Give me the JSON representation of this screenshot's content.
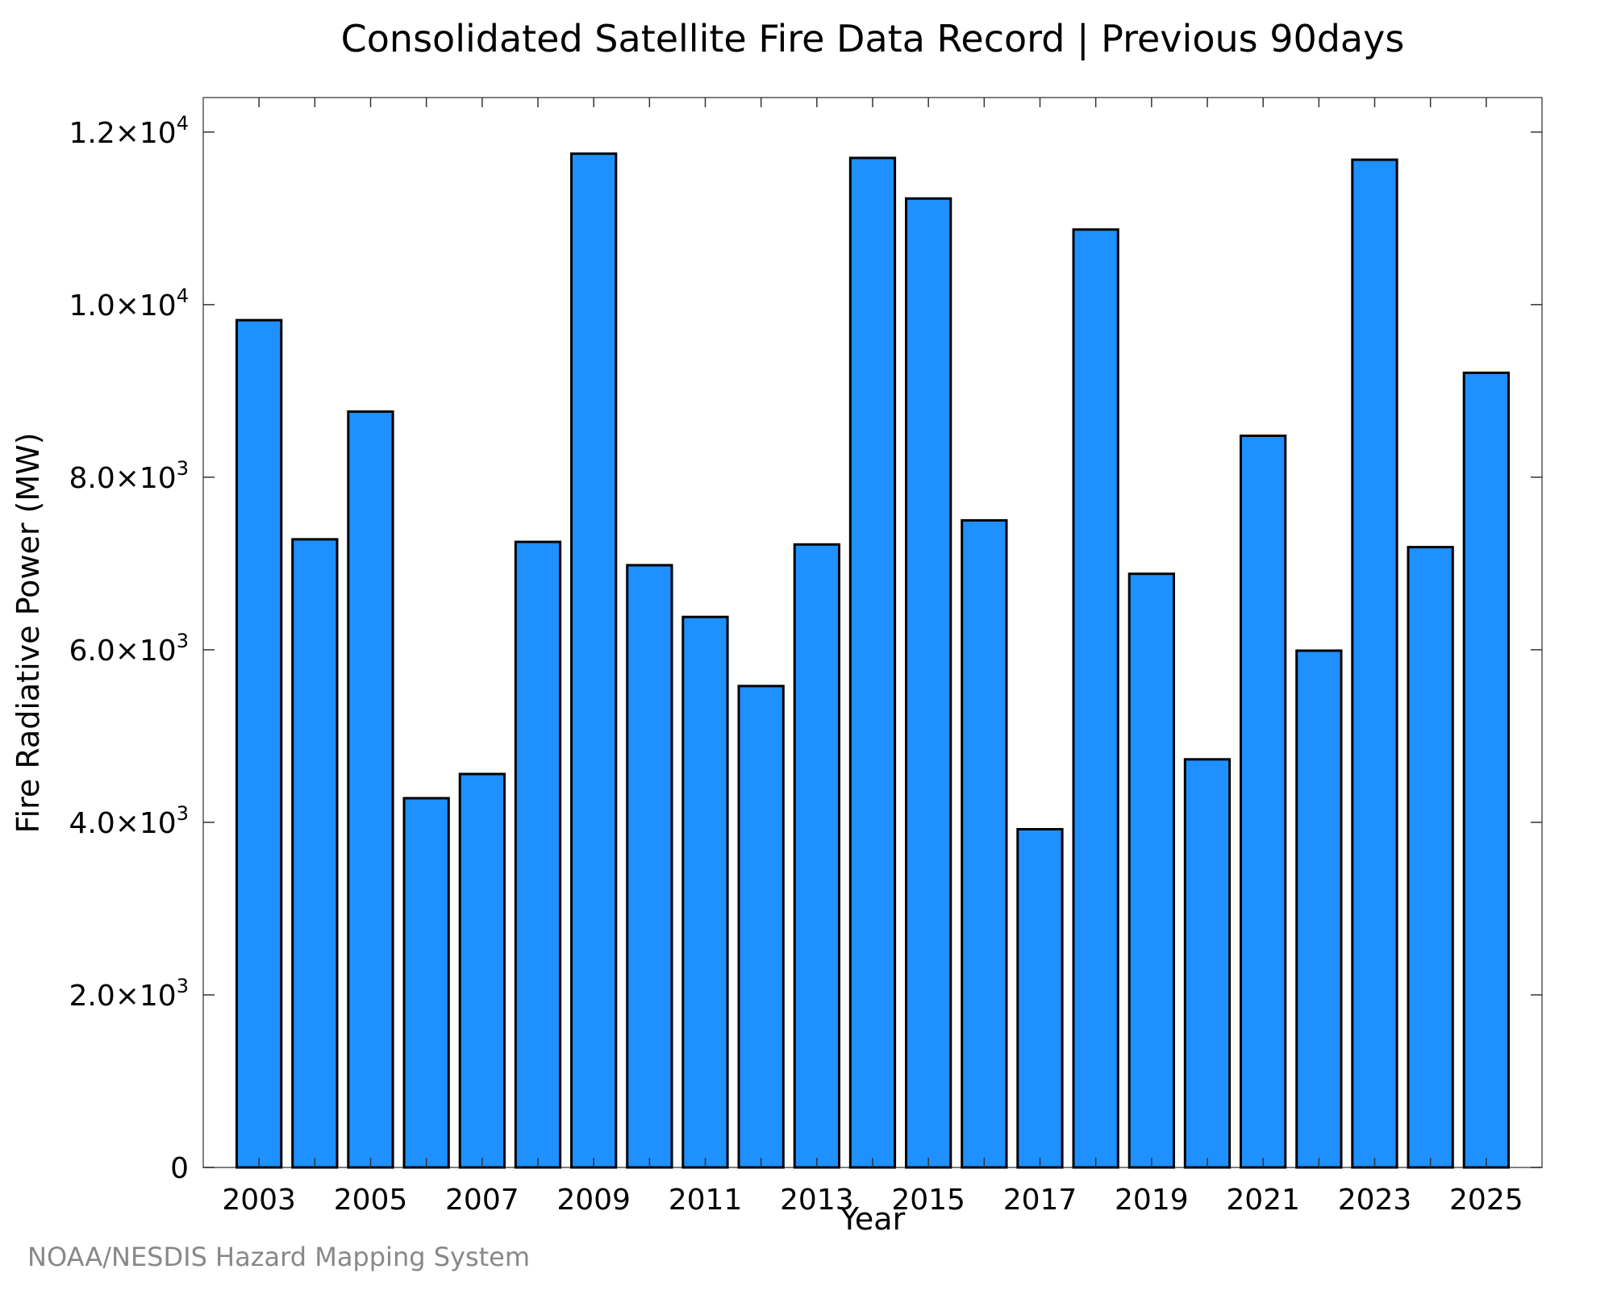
{
  "chart_data": {
    "type": "bar",
    "title": "Consolidated Satellite Fire Data Record | Previous 90days",
    "xlabel": "Year",
    "ylabel": "Fire Radiative Power (MW)",
    "credit": "NOAA/NESDIS Hazard Mapping System",
    "categories": [
      "2003",
      "2004",
      "2005",
      "2006",
      "2007",
      "2008",
      "2009",
      "2010",
      "2011",
      "2012",
      "2013",
      "2014",
      "2015",
      "2016",
      "2017",
      "2018",
      "2019",
      "2020",
      "2021",
      "2022",
      "2023",
      "2024",
      "2025"
    ],
    "values": [
      9820,
      7280,
      8760,
      4280,
      4560,
      7250,
      11750,
      6980,
      6380,
      5580,
      7220,
      11700,
      11230,
      7500,
      3920,
      10870,
      6880,
      4730,
      8480,
      5990,
      11680,
      7190,
      9210
    ],
    "x_tick_labels": [
      "2003",
      "2005",
      "2007",
      "2009",
      "2011",
      "2013",
      "2015",
      "2017",
      "2019",
      "2021",
      "2023",
      "2025"
    ],
    "ylim": [
      0,
      12400
    ],
    "y_ticks": [
      {
        "value": 0,
        "mantissa": "0",
        "exp": ""
      },
      {
        "value": 2000,
        "mantissa": "2.0×10",
        "exp": "3"
      },
      {
        "value": 4000,
        "mantissa": "4.0×10",
        "exp": "3"
      },
      {
        "value": 6000,
        "mantissa": "6.0×10",
        "exp": "3"
      },
      {
        "value": 8000,
        "mantissa": "8.0×10",
        "exp": "3"
      },
      {
        "value": 10000,
        "mantissa": "1.0×10",
        "exp": "4"
      },
      {
        "value": 12000,
        "mantissa": "1.2×10",
        "exp": "4"
      }
    ],
    "grid": false,
    "legend": "none",
    "bar_color": "#1e90ff",
    "bar_edge_color": "#000000"
  }
}
